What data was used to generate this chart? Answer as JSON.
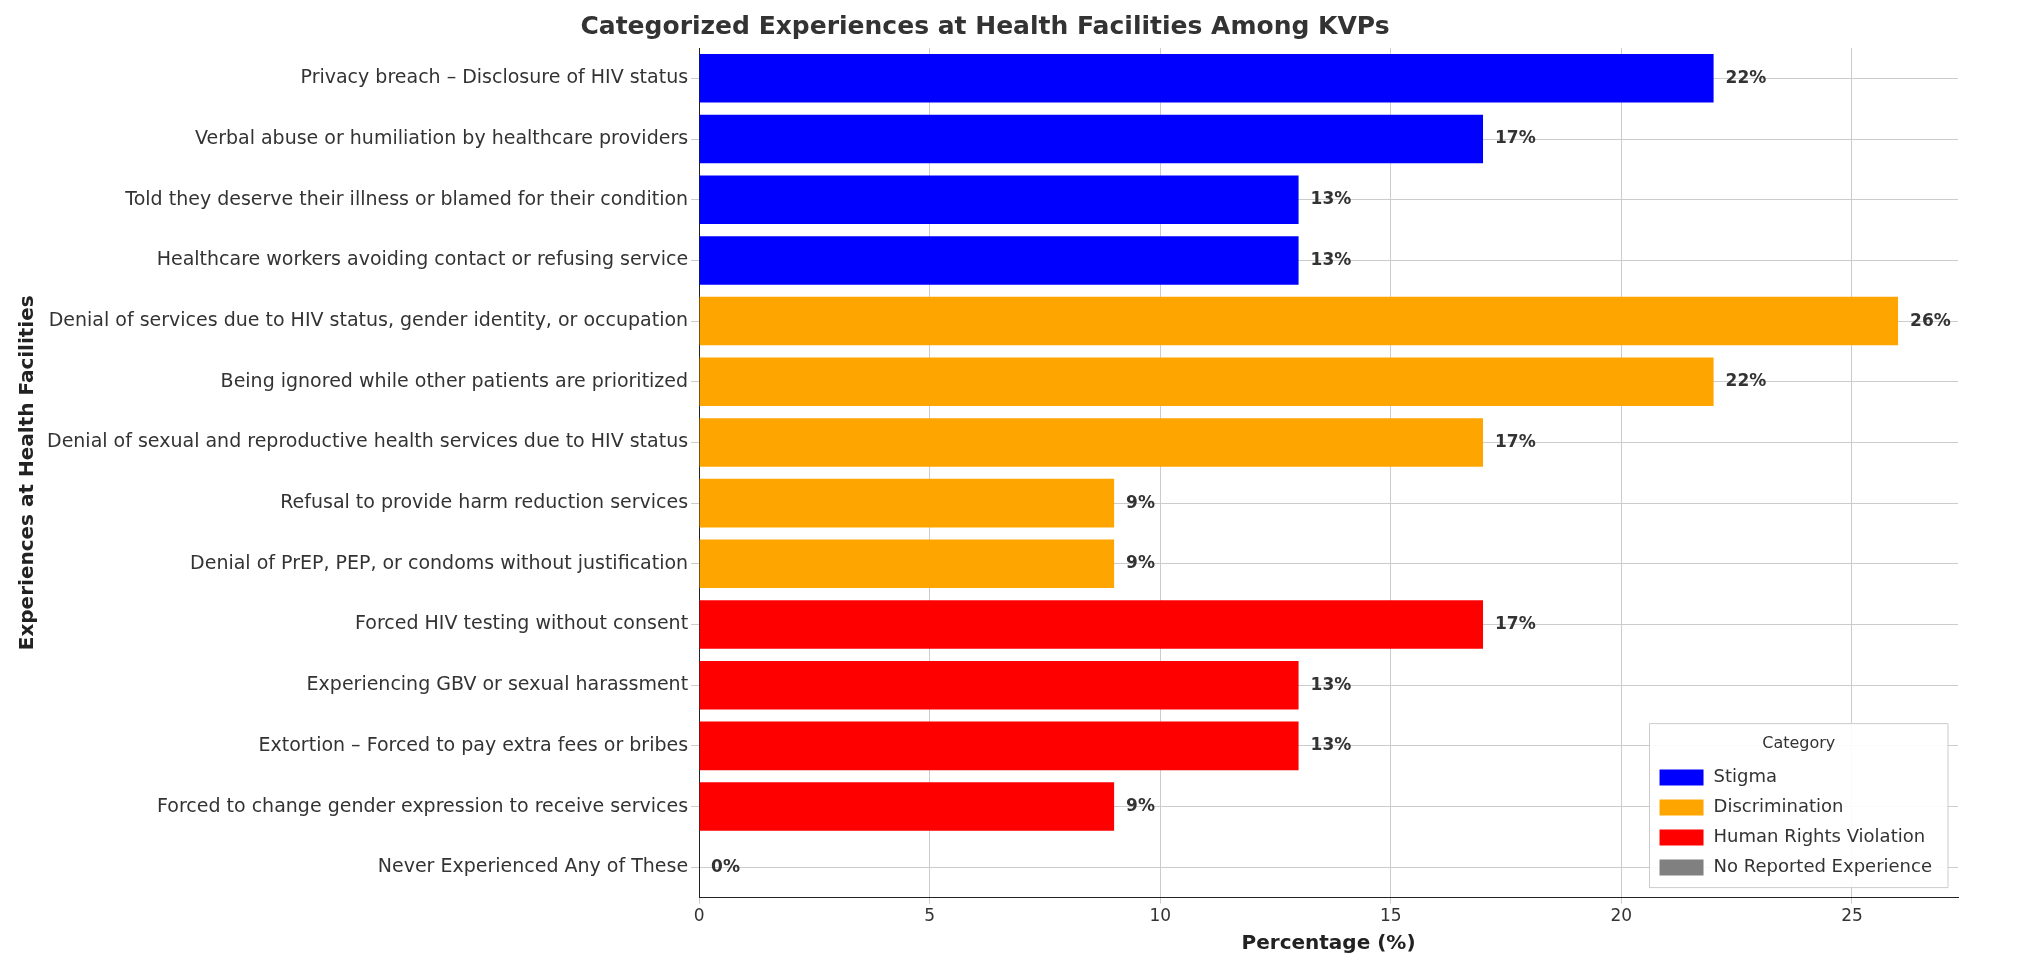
{
  "chart_data": {
    "type": "bar",
    "orientation": "horizontal",
    "title": "Categorized Experiences at Health Facilities Among KVPs",
    "xlabel": "Percentage (%)",
    "ylabel": "Experiences at Health Facilities",
    "categories": [
      "Privacy breach – Disclosure of HIV status",
      "Verbal abuse or humiliation by healthcare providers",
      "Told they deserve their illness or blamed for their condition",
      "Healthcare workers avoiding contact or refusing service",
      "Denial of services due to HIV status, gender identity, or occupation",
      "Being ignored while other patients are prioritized",
      "Denial of sexual and reproductive health services due to HIV status",
      "Refusal to provide harm reduction services",
      "Denial of PrEP, PEP, or condoms without justification",
      "Forced HIV testing without consent",
      "Experiencing GBV or sexual harassment",
      "Extortion – Forced to pay extra fees or bribes",
      "Forced to change gender expression to receive services",
      "Never Experienced Any of These"
    ],
    "series": [
      {
        "name": "Stigma",
        "color": "#0000ff",
        "values": [
          22,
          17,
          13,
          13,
          null,
          null,
          null,
          null,
          null,
          null,
          null,
          null,
          null,
          null
        ],
        "value_labels": [
          "22%",
          "17%",
          "13%",
          "13%",
          null,
          null,
          null,
          null,
          null,
          null,
          null,
          null,
          null,
          null
        ]
      },
      {
        "name": "Discrimination",
        "color": "#ffa500",
        "values": [
          null,
          null,
          null,
          null,
          26,
          22,
          17,
          9,
          9,
          null,
          null,
          null,
          null,
          null
        ],
        "value_labels": [
          null,
          null,
          null,
          null,
          "26%",
          "22%",
          "17%",
          "9%",
          "9%",
          null,
          null,
          null,
          null,
          null
        ]
      },
      {
        "name": "Human Rights Violation",
        "color": "#ff0000",
        "values": [
          null,
          null,
          null,
          null,
          null,
          null,
          null,
          null,
          null,
          17,
          13,
          13,
          9,
          null
        ],
        "value_labels": [
          null,
          null,
          null,
          null,
          null,
          null,
          null,
          null,
          null,
          "17%",
          "13%",
          "13%",
          "9%",
          null
        ]
      },
      {
        "name": "No Reported Experience",
        "color": "#808080",
        "values": [
          null,
          null,
          null,
          null,
          null,
          null,
          null,
          null,
          null,
          null,
          null,
          null,
          null,
          0
        ],
        "value_labels": [
          null,
          null,
          null,
          null,
          null,
          null,
          null,
          null,
          null,
          null,
          null,
          null,
          null,
          "0%"
        ]
      }
    ],
    "xlim": [
      0,
      27.3
    ],
    "xticks": [
      0,
      5,
      10,
      15,
      20,
      25
    ],
    "grid": true,
    "legend": "bottom right",
    "legend_title": "Category"
  }
}
